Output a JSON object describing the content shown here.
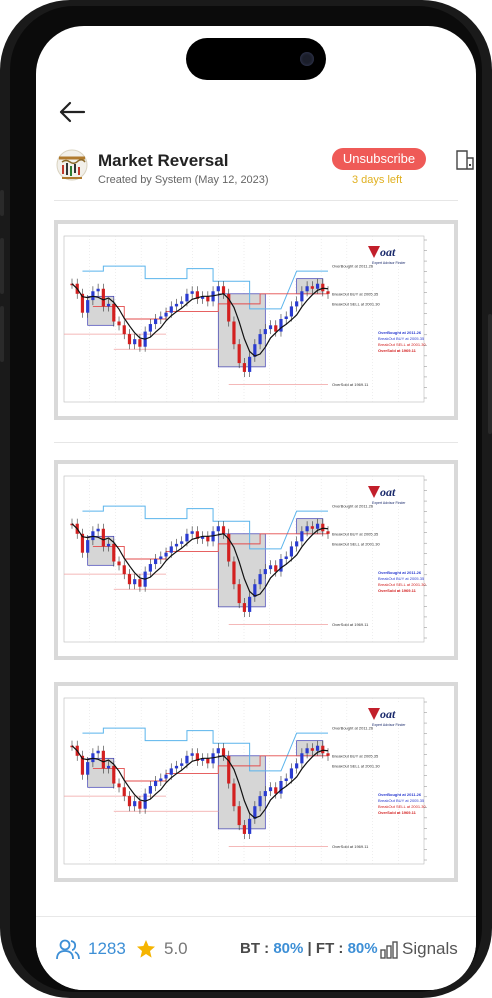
{
  "header": {
    "title": "Market Reversal",
    "subtitle": "Created by System (May 12, 2023)",
    "unsubscribe_label": "Unsubscribe",
    "days_left": "3 days left"
  },
  "chart": {
    "legend": [
      "OverBought at 2011.26",
      "BreakOut BUY at 2005.35",
      "BreakOut SELL at 2001.30",
      "OverSold at 1969.11"
    ],
    "right_labels": [
      "OverBought at 2011.26",
      "BreakOut BUY at 2005.35",
      "BreakOut SELL at 2001.30",
      "OverSold at 1969.11"
    ],
    "brand": "oat",
    "brand_sub": "Expert Advisor Finder"
  },
  "footer": {
    "users": "1283",
    "rating": "5.0",
    "bt_label": "BT :",
    "bt_value": "80%",
    "ft_label": "| FT :",
    "ft_value": "80%",
    "signals_label": "Signals"
  },
  "colors": {
    "accent": "#3d8fd6",
    "unsubscribe": "#ef5a57",
    "days_left": "#e0b020"
  }
}
